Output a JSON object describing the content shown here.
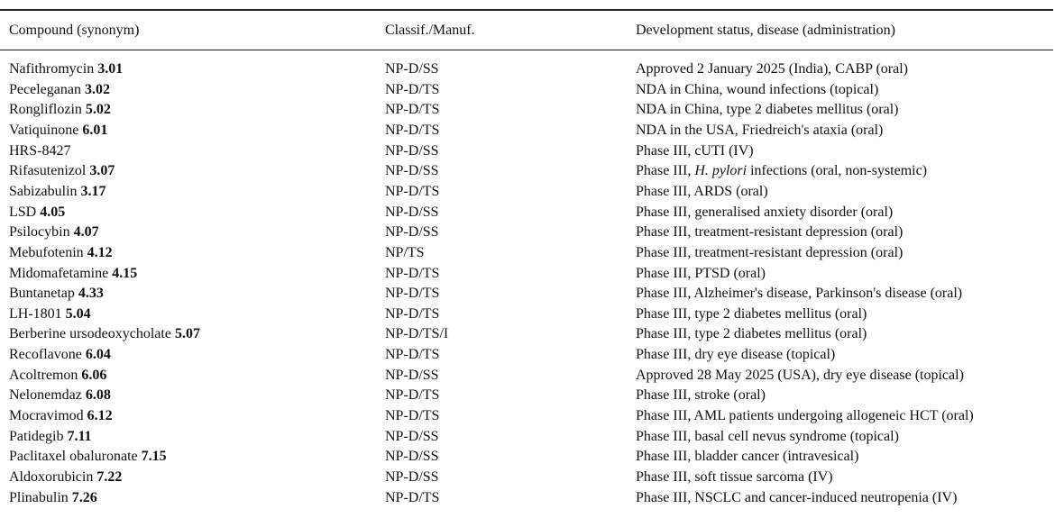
{
  "table": {
    "headers": [
      "Compound (synonym)",
      "Classif./Manuf.",
      "Development status, disease (administration)"
    ],
    "rows": [
      {
        "compound": "Nafithromycin",
        "number": "3.01",
        "class": "NP-D/SS",
        "status": "Approved 2 January 2025 (India), CABP (oral)"
      },
      {
        "compound": "Peceleganan",
        "number": "3.02",
        "class": "NP-D/TS",
        "status": "NDA in China, wound infections (topical)"
      },
      {
        "compound": "Rongliflozin",
        "number": "5.02",
        "class": "NP-D/TS",
        "status": "NDA in China, type 2 diabetes mellitus (oral)"
      },
      {
        "compound": "Vatiquinone",
        "number": "6.01",
        "class": "NP-D/TS",
        "status": "NDA in the USA, Friedreich's ataxia (oral)"
      },
      {
        "compound": "HRS-8427",
        "class": "NP-D/SS",
        "status": "Phase III, cUTI (IV)"
      },
      {
        "compound": "Rifasutenizol",
        "number": "3.07",
        "class": "NP-D/SS",
        "status": [
          {
            "text": "Phase III, "
          },
          {
            "text": "H. pylori",
            "italic": true
          },
          {
            "text": " infections (oral, non-systemic)"
          }
        ]
      },
      {
        "compound": "Sabizabulin",
        "number": "3.17",
        "class": "NP-D/TS",
        "status": "Phase III, ARDS (oral)"
      },
      {
        "compound": "LSD",
        "number": "4.05",
        "class": "NP-D/SS",
        "status": "Phase III, generalised anxiety disorder (oral)"
      },
      {
        "compound": "Psilocybin",
        "number": "4.07",
        "class": "NP-D/SS",
        "status": "Phase III, treatment-resistant depression (oral)"
      },
      {
        "compound": "Mebufotenin",
        "number": "4.12",
        "class": "NP/TS",
        "status": "Phase III, treatment-resistant depression (oral)"
      },
      {
        "compound": "Midomafetamine",
        "number": "4.15",
        "class": "NP-D/TS",
        "status": "Phase III, PTSD (oral)"
      },
      {
        "compound": "Buntanetap",
        "number": "4.33",
        "class": "NP-D/TS",
        "status": "Phase III, Alzheimer's disease, Parkinson's disease (oral)"
      },
      {
        "compound": "LH-1801",
        "number": "5.04",
        "class": "NP-D/TS",
        "status": "Phase III, type 2 diabetes mellitus (oral)"
      },
      {
        "compound": "Berberine ursodeoxycholate",
        "number": "5.07",
        "class": "NP-D/TS/I",
        "status": "Phase III, type 2 diabetes mellitus (oral)"
      },
      {
        "compound": "Recoflavone",
        "number": "6.04",
        "class": "NP-D/TS",
        "status": "Phase III, dry eye disease (topical)"
      },
      {
        "compound": "Acoltremon",
        "number": "6.06",
        "class": "NP-D/SS",
        "status": "Approved 28 May 2025 (USA), dry eye disease (topical)"
      },
      {
        "compound": "Nelonemdaz",
        "number": "6.08",
        "class": "NP-D/TS",
        "status": "Phase III, stroke (oral)"
      },
      {
        "compound": "Mocravimod",
        "number": "6.12",
        "class": "NP-D/TS",
        "status": "Phase III, AML patients undergoing allogeneic HCT (oral)"
      },
      {
        "compound": "Patidegib",
        "number": "7.11",
        "class": "NP-D/SS",
        "status": "Phase III, basal cell nevus syndrome (topical)"
      },
      {
        "compound": "Paclitaxel obaluronate",
        "number": "7.15",
        "class": "NP-D/SS",
        "status": "Phase III, bladder cancer (intravesical)"
      },
      {
        "compound": "Aldoxorubicin",
        "number": "7.22",
        "class": "NP-D/SS",
        "status": "Phase III, soft tissue sarcoma (IV)"
      },
      {
        "compound": "Plinabulin",
        "number": "7.26",
        "class": "NP-D/TS",
        "status": "Phase III, NSCLC and cancer-induced neutropenia (IV)"
      }
    ]
  }
}
